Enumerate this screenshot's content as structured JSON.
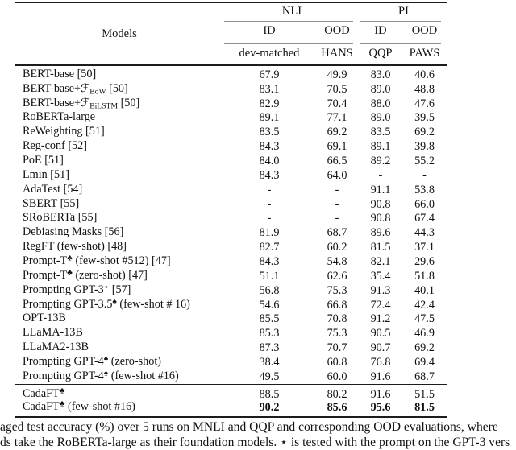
{
  "table": {
    "header": {
      "models_label": "Models",
      "group1": "NLI",
      "group2": "PI",
      "sub1": [
        "ID",
        "OOD",
        "ID",
        "OOD"
      ],
      "cols": [
        "dev-matched",
        "HANS",
        "QQP",
        "PAWS"
      ]
    },
    "rows": [
      {
        "pre": "BERT-base [50]",
        "values": [
          "67.9",
          "49.9",
          "83.0",
          "40.6"
        ]
      },
      {
        "pre": "BERT-base+ℱ",
        "sub": "BoW",
        "post": " [50]",
        "values": [
          "83.1",
          "70.5",
          "89.0",
          "48.8"
        ]
      },
      {
        "pre": "BERT-base+ℱ",
        "sub": "BiLSTM",
        "post": " [50]",
        "values": [
          "82.9",
          "70.4",
          "88.0",
          "47.6"
        ]
      },
      {
        "pre": "RoBERTa-large",
        "values": [
          "89.1",
          "77.1",
          "89.0",
          "39.5"
        ]
      },
      {
        "pre": "ReWeighting [51]",
        "values": [
          "83.5",
          "69.2",
          "83.5",
          "69.2"
        ]
      },
      {
        "pre": "Reg-conf [52]",
        "values": [
          "84.3",
          "69.1",
          "89.1",
          "39.8"
        ]
      },
      {
        "pre": "PoE [51]",
        "values": [
          "84.0",
          "66.5",
          "89.2",
          "55.2"
        ]
      },
      {
        "pre": "Lmin [51]",
        "values": [
          "84.3",
          "64.0",
          "-",
          "-"
        ]
      },
      {
        "pre": "AdaTest [54]",
        "values": [
          "-",
          "-",
          "91.1",
          "53.8"
        ]
      },
      {
        "pre": "SBERT [55]",
        "values": [
          "-",
          "-",
          "90.8",
          "66.0"
        ]
      },
      {
        "pre": "SRoBERTa [55]",
        "values": [
          "-",
          "-",
          "90.8",
          "67.4"
        ]
      },
      {
        "pre": "Debiasing Masks [56]",
        "values": [
          "81.9",
          "68.7",
          "89.6",
          "44.3"
        ]
      },
      {
        "pre": "RegFT (few-shot) [48]",
        "values": [
          "82.7",
          "60.2",
          "81.5",
          "37.1"
        ]
      },
      {
        "pre": "Prompt-T",
        "sup": "♣",
        "post": " (few-shot #512) [47]",
        "values": [
          "84.3",
          "54.8",
          "82.1",
          "29.6"
        ]
      },
      {
        "pre": "Prompt-T",
        "sup": "♣",
        "post": " (zero-shot) [47]",
        "values": [
          "51.1",
          "62.6",
          "35.4",
          "51.8"
        ]
      },
      {
        "pre": "Prompting GPT-3",
        "sup": "⋆",
        "post": " [57]",
        "values": [
          "56.8",
          "75.3",
          "91.3",
          "40.1"
        ]
      },
      {
        "pre": "Prompting GPT-3.5",
        "sup": "♠",
        "post": " (few-shot # 16)",
        "values": [
          "54.6",
          "66.8",
          "72.4",
          "42.4"
        ]
      },
      {
        "pre": "OPT-13B",
        "values": [
          "85.5",
          "70.8",
          "91.2",
          "47.5"
        ]
      },
      {
        "pre": "LLaMA-13B",
        "values": [
          "85.3",
          "75.3",
          "90.5",
          "46.9"
        ]
      },
      {
        "pre": "LLaMA2-13B",
        "values": [
          "87.3",
          "70.7",
          "90.7",
          "69.2"
        ]
      },
      {
        "pre": "Prompting GPT-4",
        "sup": "♠",
        "post": " (zero-shot)",
        "values": [
          "38.4",
          "60.8",
          "76.8",
          "69.4"
        ]
      },
      {
        "pre": "Prompting GPT-4",
        "sup": "♠",
        "post": " (few-shot #16)",
        "values": [
          "49.5",
          "60.0",
          "91.6",
          "68.7"
        ]
      }
    ],
    "footer_rows": [
      {
        "pre": "CadaFT",
        "sup": "♣",
        "values": [
          "88.5",
          "80.2",
          "91.6",
          "51.5"
        ]
      },
      {
        "pre": "CadaFT",
        "sup": "♣",
        "post": " (few-shot #16)",
        "values": [
          "90.2",
          "85.6",
          "95.6",
          "81.5"
        ],
        "bold_values": true
      }
    ]
  },
  "caption": {
    "line1": "aged test accuracy (%) over 5 runs on MNLI and QQP and corresponding OOD evaluations, where",
    "line2": "ds take the RoBERTa-large as their foundation models. ⋆ is tested with the prompt on the GPT-3 vers"
  },
  "colors": {
    "rule": "#1c1c1c",
    "cmidrule": "#8f8f8f",
    "text": "#111111",
    "background": "#ffffff"
  }
}
